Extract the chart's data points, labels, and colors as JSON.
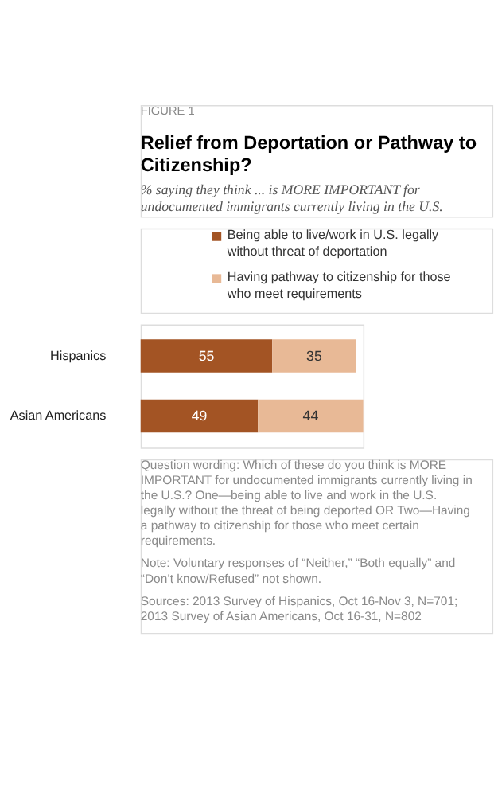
{
  "chart_data": {
    "type": "bar",
    "orientation": "horizontal",
    "stacked": true,
    "data_labels": true,
    "legend": "top",
    "title": "Relief from Deportation or Pathway to Citizenship?",
    "subtitle": "% saying they think ... is MORE IMPORTANT for undocumented immigrants currently living in the U.S.",
    "categories": [
      "Hispanics",
      "Asian Americans"
    ],
    "series": [
      {
        "name": "Being able to live/work in U.S. legally without threat of deportation",
        "color": "#a35424",
        "values": [
          55,
          49
        ]
      },
      {
        "name": "Having pathway to citizenship for those who meet requirements",
        "color": "#e8b996",
        "values": [
          35,
          44
        ]
      }
    ],
    "annotations": [
      "FIGURE 1",
      "Question wording: Which of these do you think is MORE IMPORTANT for undocumented immigrants currently living in the U.S.? One—being able to live and work in the U.S. legally without the threat of being deported OR Two—Having a pathway to citizenship for those who meet certain requirements.",
      "Note: Voluntary responses of “Neither,” “Both equally” and “Don’t know/Refused” not shown.",
      "Sources: 2013 Survey of Hispanics, Oct 16-Nov 3, N=701; 2013 Survey of Asian Americans, Oct 16-31, N=802"
    ]
  }
}
